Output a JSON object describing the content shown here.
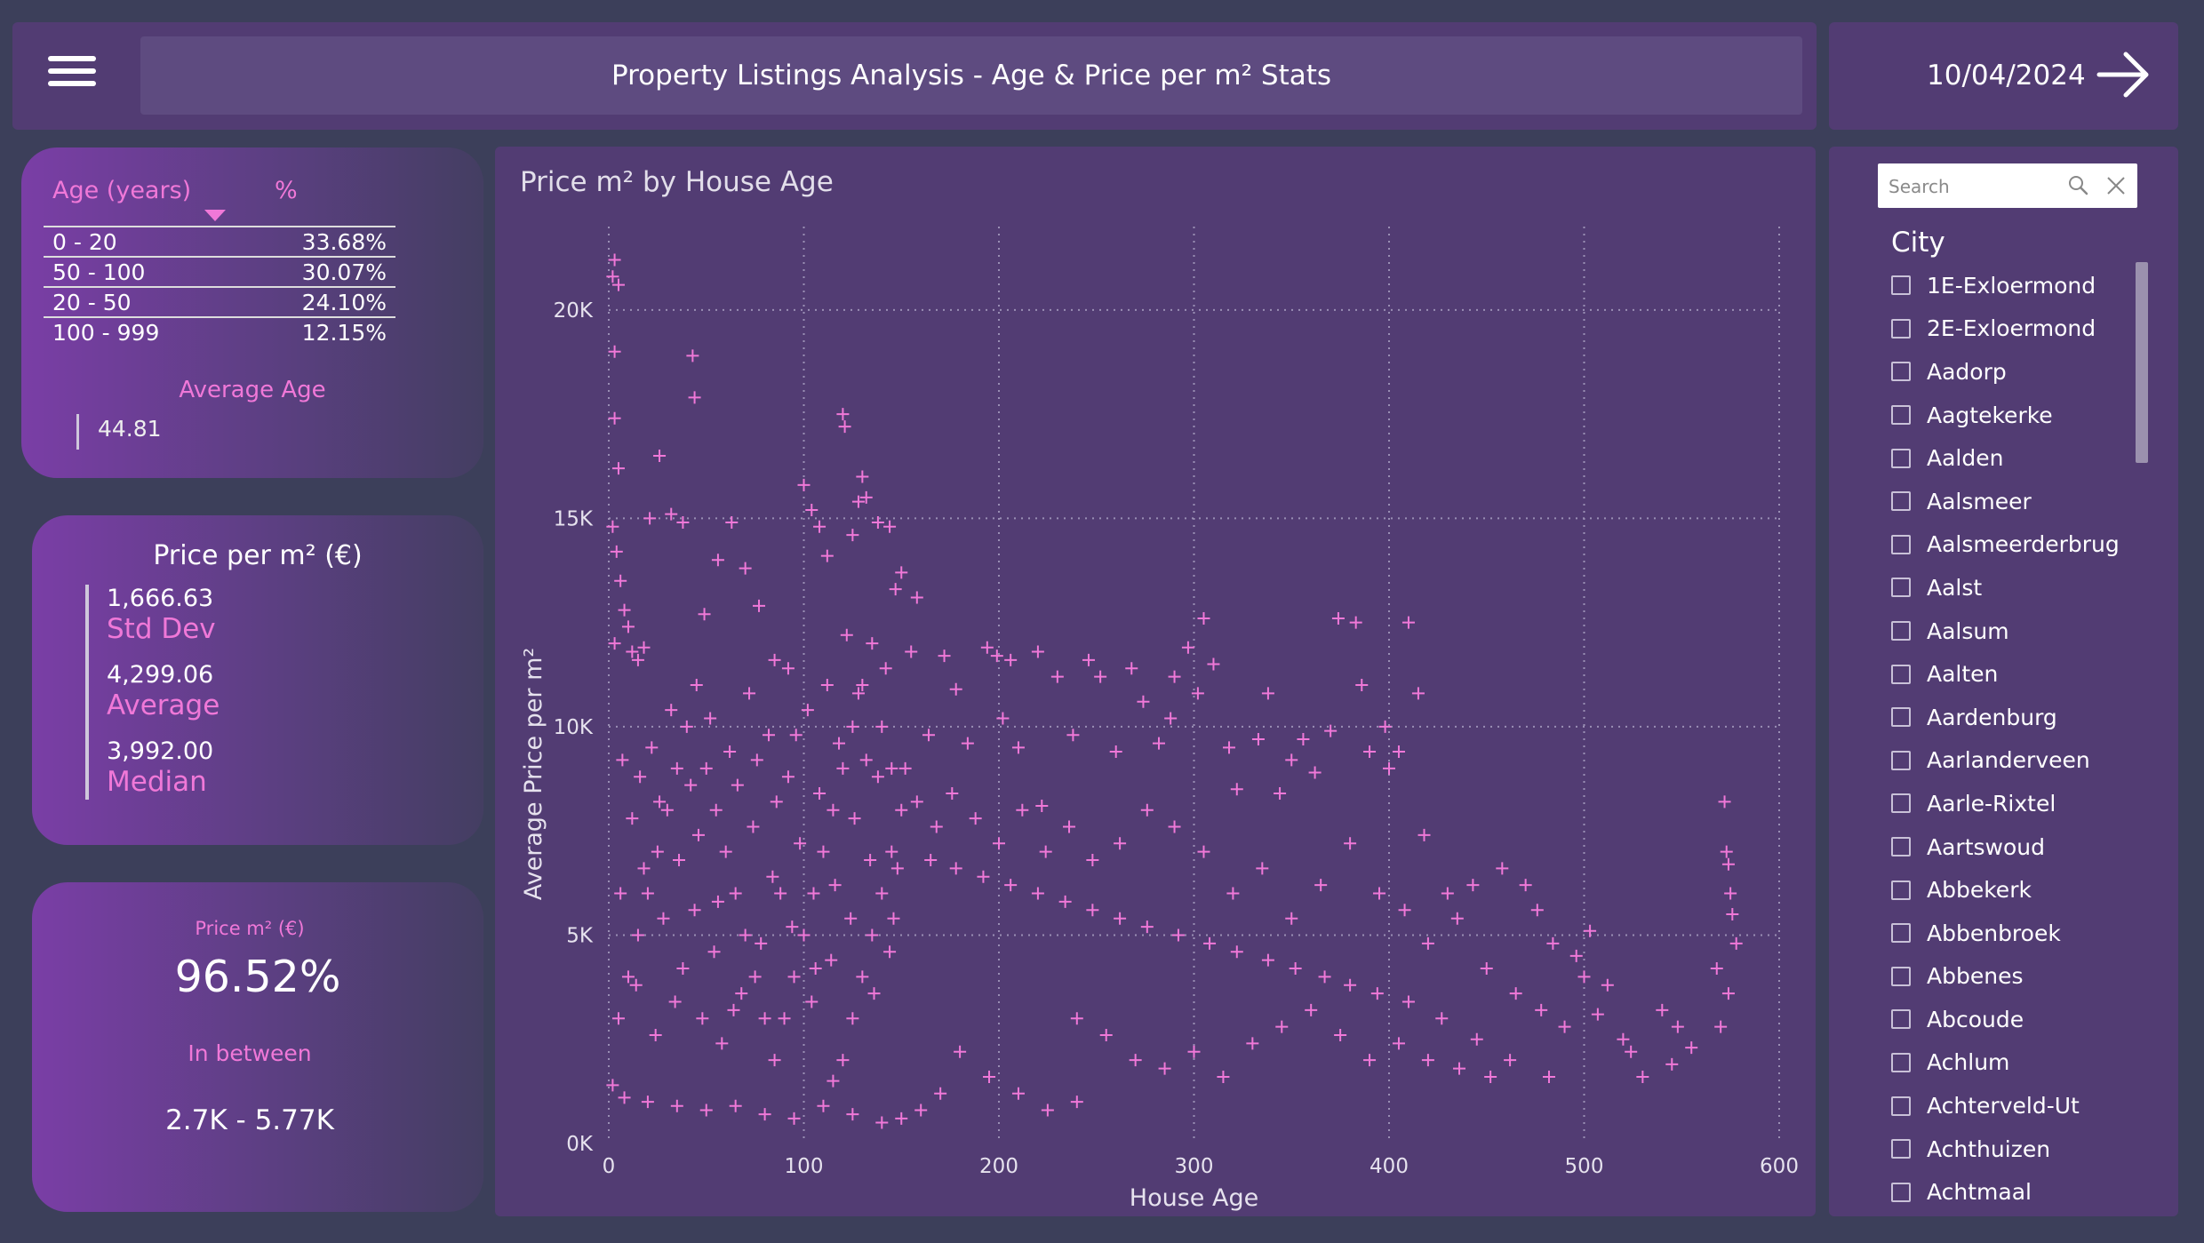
{
  "header": {
    "title": "Property Listings Analysis - Age & Price per m² Stats",
    "date": "10/04/2024",
    "menu_icon": "hamburger-icon",
    "next_icon": "arrow-right-icon"
  },
  "age_table": {
    "col_age": "Age (years)",
    "col_pct": "%",
    "rows": [
      {
        "range": "0 - 20",
        "pct": "33.68%"
      },
      {
        "range": "50 - 100",
        "pct": "30.07%"
      },
      {
        "range": "20 - 50",
        "pct": "24.10%"
      },
      {
        "range": "100 - 999",
        "pct": "12.15%"
      }
    ],
    "avg_label": "Average Age",
    "avg_value": "44.81"
  },
  "price_card": {
    "title": "Price per m² (€)",
    "std_value": "1,666.63",
    "std_label": "Std Dev",
    "avg_value": "4,299.06",
    "avg_label": "Average",
    "median_value": "3,992.00",
    "median_label": "Median"
  },
  "between_card": {
    "title": "Price m² (€)",
    "pct": "96.52%",
    "label": "In between",
    "range": "2.7K - 5.77K"
  },
  "chart_data": {
    "type": "scatter",
    "title": "Price m² by House Age",
    "xlabel": "House Age",
    "ylabel": "Average Price per m²",
    "xlim": [
      0,
      600
    ],
    "ylim": [
      0,
      22000
    ],
    "x_ticks": [
      0,
      100,
      200,
      300,
      400,
      500,
      600
    ],
    "y_ticks": [
      0,
      5000,
      10000,
      15000,
      20000
    ],
    "x_tick_labels": [
      "0",
      "100",
      "200",
      "300",
      "400",
      "500",
      "600"
    ],
    "y_tick_labels": [
      "0K",
      "5K",
      "10K",
      "15K",
      "20K"
    ],
    "grid": true,
    "marker": "plus",
    "color": "#f078d8",
    "points": [
      [
        3,
        21200
      ],
      [
        5,
        20600
      ],
      [
        2,
        20800
      ],
      [
        3,
        19000
      ],
      [
        3,
        17400
      ],
      [
        5,
        16200
      ],
      [
        2,
        14800
      ],
      [
        4,
        14200
      ],
      [
        6,
        13500
      ],
      [
        8,
        12800
      ],
      [
        10,
        12400
      ],
      [
        3,
        12000
      ],
      [
        12,
        11800
      ],
      [
        15,
        11600
      ],
      [
        18,
        11900
      ],
      [
        21,
        15000
      ],
      [
        26,
        16500
      ],
      [
        32,
        15100
      ],
      [
        38,
        14900
      ],
      [
        43,
        18900
      ],
      [
        44,
        17900
      ],
      [
        49,
        12700
      ],
      [
        56,
        14000
      ],
      [
        63,
        14900
      ],
      [
        70,
        13800
      ],
      [
        77,
        12900
      ],
      [
        85,
        11600
      ],
      [
        92,
        11400
      ],
      [
        100,
        15800
      ],
      [
        104,
        15200
      ],
      [
        108,
        14800
      ],
      [
        112,
        14100
      ],
      [
        120,
        17500
      ],
      [
        121,
        17200
      ],
      [
        125,
        14600
      ],
      [
        128,
        15400
      ],
      [
        130,
        16000
      ],
      [
        132,
        15500
      ],
      [
        138,
        14900
      ],
      [
        144,
        14800
      ],
      [
        147,
        13300
      ],
      [
        150,
        13700
      ],
      [
        155,
        11800
      ],
      [
        158,
        13100
      ],
      [
        164,
        9800
      ],
      [
        172,
        11700
      ],
      [
        178,
        10900
      ],
      [
        184,
        9600
      ],
      [
        194,
        11900
      ],
      [
        199,
        11700
      ],
      [
        202,
        10200
      ],
      [
        206,
        11600
      ],
      [
        210,
        9500
      ],
      [
        220,
        11800
      ],
      [
        222,
        8100
      ],
      [
        230,
        11200
      ],
      [
        238,
        9800
      ],
      [
        246,
        11600
      ],
      [
        252,
        11200
      ],
      [
        260,
        9400
      ],
      [
        268,
        11400
      ],
      [
        274,
        10600
      ],
      [
        282,
        9600
      ],
      [
        288,
        10200
      ],
      [
        290,
        11200
      ],
      [
        297,
        11900
      ],
      [
        302,
        10800
      ],
      [
        305,
        12600
      ],
      [
        310,
        11500
      ],
      [
        318,
        9500
      ],
      [
        322,
        8500
      ],
      [
        333,
        9700
      ],
      [
        338,
        10800
      ],
      [
        344,
        8400
      ],
      [
        350,
        9200
      ],
      [
        356,
        9700
      ],
      [
        362,
        8900
      ],
      [
        370,
        9900
      ],
      [
        374,
        12600
      ],
      [
        383,
        12500
      ],
      [
        386,
        11000
      ],
      [
        390,
        9400
      ],
      [
        398,
        10000
      ],
      [
        400,
        9000
      ],
      [
        405,
        9400
      ],
      [
        410,
        12500
      ],
      [
        415,
        10800
      ],
      [
        418,
        7400
      ],
      [
        430,
        6000
      ],
      [
        443,
        6200
      ],
      [
        458,
        6600
      ],
      [
        470,
        6200
      ],
      [
        476,
        5600
      ],
      [
        484,
        4800
      ],
      [
        496,
        4500
      ],
      [
        503,
        5100
      ],
      [
        520,
        2500
      ],
      [
        524,
        2200
      ],
      [
        540,
        3200
      ],
      [
        548,
        2800
      ],
      [
        568,
        4200
      ],
      [
        572,
        8200
      ],
      [
        573,
        7000
      ],
      [
        574,
        6700
      ],
      [
        575,
        6000
      ],
      [
        576,
        5500
      ],
      [
        578,
        4800
      ],
      [
        574,
        3600
      ],
      [
        570,
        2800
      ],
      [
        555,
        2300
      ],
      [
        545,
        1900
      ],
      [
        530,
        1600
      ],
      [
        507,
        3100
      ],
      [
        482,
        1600
      ],
      [
        462,
        2000
      ],
      [
        445,
        2500
      ],
      [
        427,
        3000
      ],
      [
        410,
        3400
      ],
      [
        394,
        3600
      ],
      [
        380,
        3800
      ],
      [
        367,
        4000
      ],
      [
        352,
        4200
      ],
      [
        338,
        4400
      ],
      [
        322,
        4600
      ],
      [
        308,
        4800
      ],
      [
        292,
        5000
      ],
      [
        276,
        5200
      ],
      [
        262,
        5400
      ],
      [
        248,
        5600
      ],
      [
        234,
        5800
      ],
      [
        220,
        6000
      ],
      [
        206,
        6200
      ],
      [
        192,
        6400
      ],
      [
        178,
        6600
      ],
      [
        165,
        6800
      ],
      [
        320,
        6000
      ],
      [
        335,
        6600
      ],
      [
        350,
        5400
      ],
      [
        365,
        6200
      ],
      [
        380,
        7200
      ],
      [
        395,
        6000
      ],
      [
        408,
        5600
      ],
      [
        420,
        4800
      ],
      [
        435,
        5400
      ],
      [
        450,
        4200
      ],
      [
        465,
        3600
      ],
      [
        478,
        3200
      ],
      [
        490,
        2800
      ],
      [
        500,
        4000
      ],
      [
        512,
        3800
      ],
      [
        305,
        7000
      ],
      [
        290,
        7600
      ],
      [
        276,
        8000
      ],
      [
        262,
        7200
      ],
      [
        248,
        6800
      ],
      [
        236,
        7600
      ],
      [
        224,
        7000
      ],
      [
        212,
        8000
      ],
      [
        200,
        7200
      ],
      [
        188,
        7800
      ],
      [
        176,
        8400
      ],
      [
        168,
        7600
      ],
      [
        158,
        8200
      ],
      [
        152,
        9000
      ],
      [
        240,
        3000
      ],
      [
        255,
        2600
      ],
      [
        270,
        2000
      ],
      [
        285,
        1800
      ],
      [
        300,
        2200
      ],
      [
        315,
        1600
      ],
      [
        330,
        2400
      ],
      [
        345,
        2800
      ],
      [
        360,
        3200
      ],
      [
        375,
        2600
      ],
      [
        390,
        2000
      ],
      [
        405,
        2400
      ],
      [
        420,
        2000
      ],
      [
        436,
        1800
      ],
      [
        452,
        1600
      ],
      [
        180,
        2200
      ],
      [
        195,
        1600
      ],
      [
        210,
        1200
      ],
      [
        225,
        800
      ],
      [
        240,
        1000
      ],
      [
        170,
        1200
      ],
      [
        160,
        800
      ],
      [
        150,
        600
      ],
      [
        140,
        500
      ],
      [
        125,
        700
      ],
      [
        110,
        900
      ],
      [
        95,
        600
      ],
      [
        80,
        700
      ],
      [
        65,
        900
      ],
      [
        50,
        800
      ],
      [
        35,
        900
      ],
      [
        20,
        1000
      ],
      [
        8,
        1100
      ],
      [
        2,
        1400
      ],
      [
        5,
        3000
      ],
      [
        10,
        4000
      ],
      [
        15,
        5000
      ],
      [
        20,
        6000
      ],
      [
        25,
        7000
      ],
      [
        30,
        8000
      ],
      [
        35,
        9000
      ],
      [
        40,
        10000
      ],
      [
        45,
        11000
      ],
      [
        50,
        9000
      ],
      [
        55,
        8000
      ],
      [
        60,
        7000
      ],
      [
        65,
        6000
      ],
      [
        70,
        5000
      ],
      [
        75,
        4000
      ],
      [
        80,
        3000
      ],
      [
        85,
        2000
      ],
      [
        90,
        3000
      ],
      [
        95,
        4000
      ],
      [
        100,
        5000
      ],
      [
        105,
        6000
      ],
      [
        110,
        7000
      ],
      [
        115,
        8000
      ],
      [
        120,
        9000
      ],
      [
        125,
        10000
      ],
      [
        130,
        11000
      ],
      [
        135,
        12000
      ],
      [
        140,
        10000
      ],
      [
        145,
        9000
      ],
      [
        150,
        8000
      ],
      [
        145,
        7000
      ],
      [
        140,
        6000
      ],
      [
        135,
        5000
      ],
      [
        130,
        4000
      ],
      [
        125,
        3000
      ],
      [
        120,
        2000
      ],
      [
        115,
        1500
      ],
      [
        12,
        7800
      ],
      [
        18,
        6600
      ],
      [
        28,
        5400
      ],
      [
        38,
        4200
      ],
      [
        48,
        3000
      ],
      [
        58,
        2400
      ],
      [
        68,
        3600
      ],
      [
        78,
        4800
      ],
      [
        88,
        6000
      ],
      [
        98,
        7200
      ],
      [
        108,
        8400
      ],
      [
        118,
        9600
      ],
      [
        128,
        10800
      ],
      [
        138,
        8800
      ],
      [
        148,
        6600
      ],
      [
        22,
        9500
      ],
      [
        32,
        10400
      ],
      [
        42,
        8600
      ],
      [
        52,
        10200
      ],
      [
        62,
        9400
      ],
      [
        72,
        10800
      ],
      [
        82,
        9800
      ],
      [
        92,
        8800
      ],
      [
        102,
        10400
      ],
      [
        112,
        11000
      ],
      [
        122,
        12200
      ],
      [
        132,
        9200
      ],
      [
        142,
        11400
      ],
      [
        6,
        6000
      ],
      [
        14,
        3800
      ],
      [
        24,
        2600
      ],
      [
        34,
        3400
      ],
      [
        44,
        5600
      ],
      [
        54,
        4600
      ],
      [
        64,
        3200
      ],
      [
        74,
        7600
      ],
      [
        84,
        6400
      ],
      [
        94,
        5200
      ],
      [
        104,
        3400
      ],
      [
        114,
        4400
      ],
      [
        124,
        5400
      ],
      [
        134,
        6800
      ],
      [
        144,
        4600
      ],
      [
        7,
        9200
      ],
      [
        16,
        8800
      ],
      [
        26,
        8200
      ],
      [
        36,
        6800
      ],
      [
        46,
        7400
      ],
      [
        56,
        5800
      ],
      [
        66,
        8600
      ],
      [
        76,
        9200
      ],
      [
        86,
        8200
      ],
      [
        96,
        9800
      ],
      [
        106,
        4200
      ],
      [
        116,
        6200
      ],
      [
        126,
        7800
      ],
      [
        136,
        3600
      ],
      [
        146,
        5400
      ]
    ]
  },
  "slicer": {
    "search_placeholder": "Search",
    "search_icon": "search-icon",
    "clear_icon": "close-icon",
    "header": "City",
    "cities": [
      "1E-Exloermond",
      "2E-Exloermond",
      "Aadorp",
      "Aagtekerke",
      "Aalden",
      "Aalsmeer",
      "Aalsmeerderbrug",
      "Aalst",
      "Aalsum",
      "Aalten",
      "Aardenburg",
      "Aarlanderveen",
      "Aarle-Rixtel",
      "Aartswoud",
      "Abbekerk",
      "Abbenbroek",
      "Abbenes",
      "Abcoude",
      "Achlum",
      "Achterveld-Ut",
      "Achthuizen",
      "Achtmaal"
    ]
  }
}
